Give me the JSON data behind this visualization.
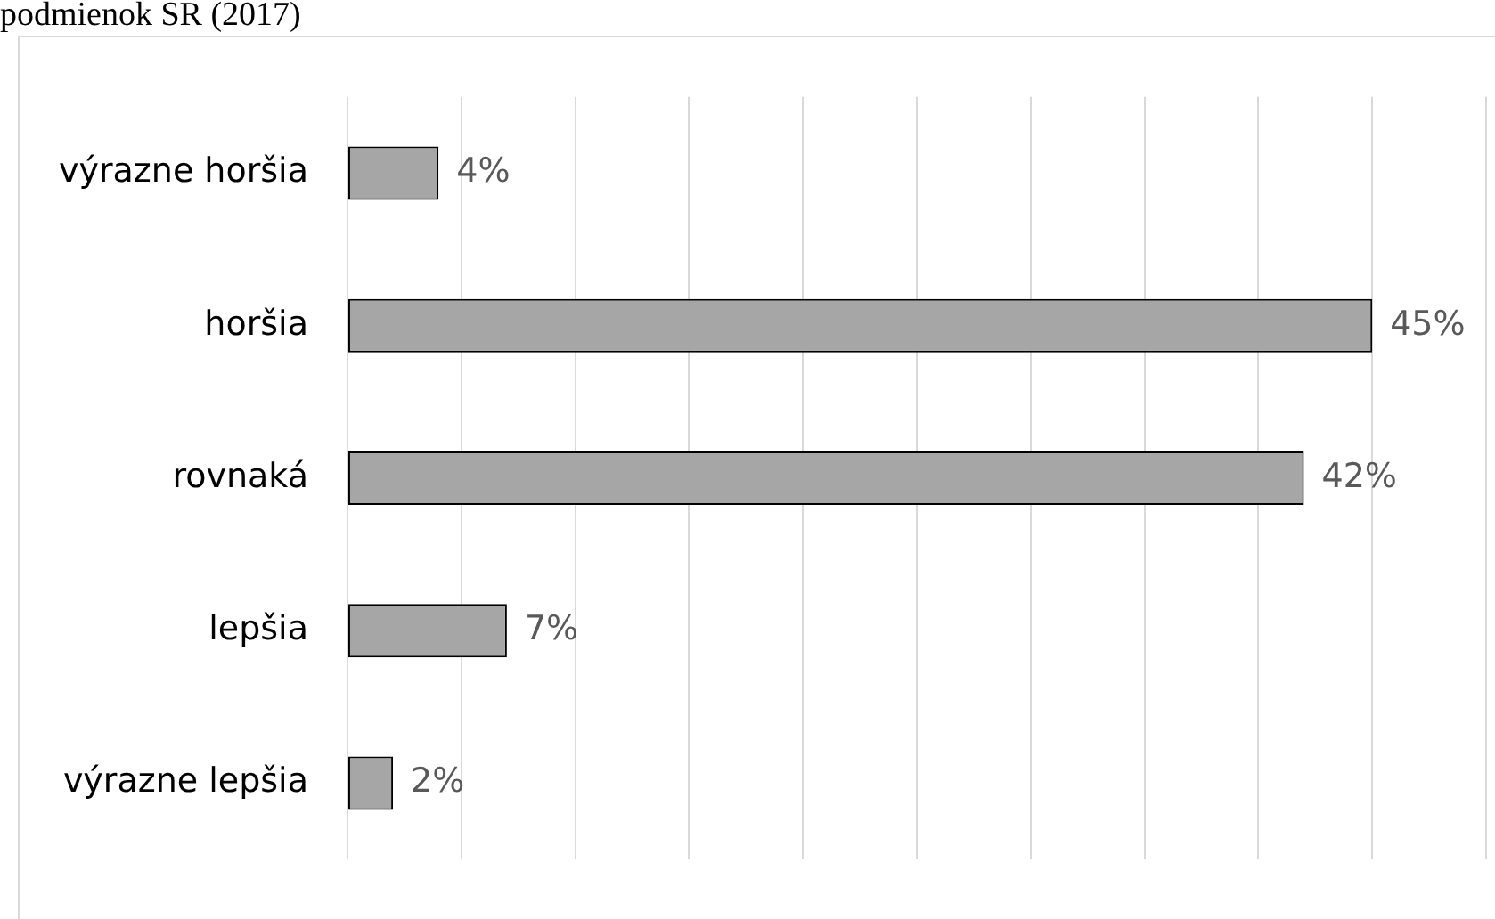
{
  "chart_data": {
    "type": "bar",
    "orientation": "horizontal",
    "title": "podmienok SR (2017)",
    "categories": [
      "výrazne horšia",
      "horšia",
      "rovnaká",
      "lepšia",
      "výrazne lepšia"
    ],
    "values": [
      4,
      45,
      42,
      7,
      2
    ],
    "color": "#a6a6a6",
    "value_labels": [
      "4%",
      "45%",
      "42%",
      "7%",
      "2%"
    ],
    "xlim": [
      0,
      50
    ],
    "xticks": [
      {
        "value": 0,
        "label": null
      },
      {
        "value": 5,
        "label": null
      },
      {
        "value": 10,
        "label": null
      },
      {
        "value": 15,
        "label": null
      },
      {
        "value": 20,
        "label": null
      },
      {
        "value": 25,
        "label": null
      },
      {
        "value": 30,
        "label": null
      },
      {
        "value": 35,
        "label": null
      },
      {
        "value": 40,
        "label": null
      },
      {
        "value": 45,
        "label": null
      },
      {
        "value": 50,
        "label": null
      }
    ],
    "grid": "x",
    "tick_labels": "y"
  }
}
